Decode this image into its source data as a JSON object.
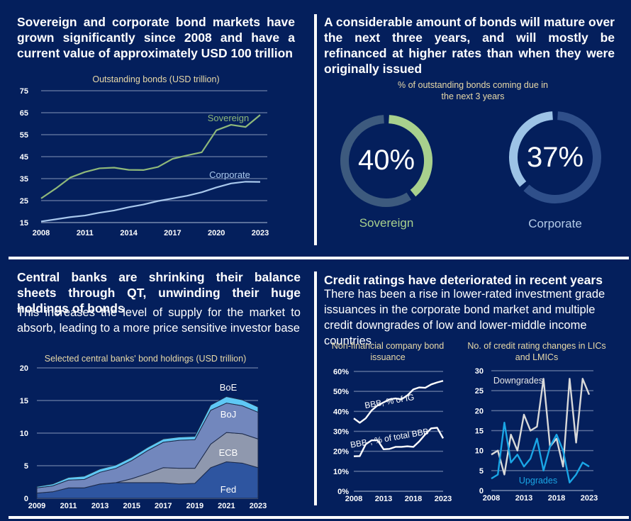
{
  "panels": {
    "top_left": {
      "headline": "Sovereign and corporate bond markets have grown significantly since 2008 and have a current value of approximately USD 100 trillion"
    },
    "top_right": {
      "headline": "A considerable amount of bonds will mature over the next three years, and will mostly be refinanced at higher rates than when they were originally issued",
      "chart_title_line1": "% of outstanding bonds coming due in",
      "chart_title_line2": "the next 3 years"
    },
    "bottom_left": {
      "headline": "Central banks are shrinking their balance sheets through QT, unwinding their huge holdings of bonds",
      "subtext": "This increases the level of supply for the market to absorb, leading to a more price sensitive investor base"
    },
    "bottom_right": {
      "headline": "Credit ratings have deteriorated in recent years",
      "subtext": "There has been a rise in lower-rated investment grade issuances in the corporate bond market and multiple credit downgrades of low and lower-middle income countries"
    }
  },
  "colors": {
    "background": "#041f5c",
    "sovereign": "#8fb87a",
    "corporate": "#a9c8ec",
    "sovereign_donut": "#a8d08d",
    "corporate_donut": "#9dc3e6",
    "donut_track_sov": "#3d5a7e",
    "donut_track_corp": "#2f4f8a",
    "fed": "#2e55a0",
    "ecb": "#8f98ae",
    "boj": "#7287bd",
    "boe": "#5fc8f5",
    "downgrades": "#d9d9d9",
    "upgrades": "#1aa6e6",
    "title_text": "#e8d9a8",
    "grid": "#5a6f9a"
  },
  "chart_data": [
    {
      "id": "outstanding_bonds",
      "type": "line",
      "title": "Outstanding bonds (USD trillion)",
      "xlabel": "",
      "ylabel": "",
      "x": [
        2008,
        2009,
        2010,
        2011,
        2012,
        2013,
        2014,
        2015,
        2016,
        2017,
        2018,
        2019,
        2020,
        2021,
        2022,
        2023
      ],
      "x_ticks": [
        "2008",
        "2011",
        "2014",
        "2017",
        "2020",
        "2023"
      ],
      "y_ticks": [
        15,
        25,
        35,
        45,
        55,
        65,
        75
      ],
      "ylim": [
        15,
        75
      ],
      "grid": true,
      "series": [
        {
          "name": "Sovereign",
          "values": [
            26,
            30.5,
            35.5,
            38,
            39.7,
            40,
            39,
            38.9,
            40.3,
            44,
            45.6,
            47,
            57,
            59.5,
            58.5,
            64
          ]
        },
        {
          "name": "Corporate",
          "values": [
            15.5,
            16.5,
            17.5,
            18.2,
            19.5,
            20.5,
            22,
            23.2,
            24.8,
            26,
            27.2,
            28.8,
            31,
            32.8,
            33.6,
            33.5
          ]
        }
      ]
    },
    {
      "id": "bonds_due",
      "type": "pie",
      "title": "% of outstanding bonds coming due in the next 3 years",
      "series": [
        {
          "name": "Sovereign",
          "value": 40,
          "label": "40%"
        },
        {
          "name": "Corporate",
          "value": 37,
          "label": "37%"
        }
      ]
    },
    {
      "id": "cb_holdings",
      "type": "area",
      "stacked": true,
      "title": "Selected central banks' bond holdings (USD trillion)",
      "x": [
        2009,
        2010,
        2011,
        2012,
        2013,
        2014,
        2015,
        2016,
        2017,
        2018,
        2019,
        2020,
        2021,
        2022,
        2023
      ],
      "x_ticks": [
        "2009",
        "2011",
        "2013",
        "2015",
        "2017",
        "2019",
        "2021",
        "2023"
      ],
      "y_ticks": [
        0,
        5,
        10,
        15,
        20
      ],
      "ylim": [
        0,
        20
      ],
      "grid": true,
      "series": [
        {
          "name": "Fed",
          "values": [
            0.8,
            1.0,
            1.6,
            1.6,
            2.2,
            2.4,
            2.4,
            2.4,
            2.4,
            2.2,
            2.3,
            4.7,
            5.6,
            5.4,
            4.7
          ]
        },
        {
          "name": "ECB",
          "values": [
            0,
            0,
            0,
            0,
            0,
            0,
            0.6,
            1.4,
            2.3,
            2.4,
            2.3,
            3.6,
            4.5,
            4.5,
            4.4
          ]
        },
        {
          "name": "BoJ",
          "values": [
            0.8,
            0.9,
            1.2,
            1.3,
            1.8,
            2.2,
            2.8,
            3.5,
            3.9,
            4.3,
            4.4,
            5.2,
            4.5,
            4.3,
            4.1
          ]
        },
        {
          "name": "BoE",
          "values": [
            0.2,
            0.3,
            0.4,
            0.5,
            0.5,
            0.5,
            0.5,
            0.5,
            0.5,
            0.5,
            0.5,
            0.8,
            1.0,
            0.9,
            0.8
          ]
        }
      ]
    },
    {
      "id": "nfc_issuance",
      "type": "line",
      "title": "Non-financial company bond issuance",
      "x": [
        2008,
        2009,
        2010,
        2011,
        2012,
        2013,
        2014,
        2015,
        2016,
        2017,
        2018,
        2019,
        2020,
        2021,
        2022,
        2023
      ],
      "x_ticks": [
        "2008",
        "2013",
        "2018",
        "2023"
      ],
      "y_ticks": [
        "0%",
        "10%",
        "20%",
        "30%",
        "40%",
        "50%",
        "60%"
      ],
      "ylim": [
        0,
        60
      ],
      "grid": true,
      "series": [
        {
          "name": "BBB, % of IG",
          "values": [
            36.5,
            34.3,
            36.5,
            40.5,
            43,
            44.5,
            46,
            46.5,
            46,
            48,
            51,
            52,
            51.8,
            53.5,
            54.5,
            55.3
          ]
        },
        {
          "name": "BBB-, % of total BBB",
          "values": [
            17.5,
            17.6,
            23.5,
            25.5,
            25.5,
            21,
            21.2,
            22.2,
            22.2,
            22.5,
            22.2,
            25,
            28.5,
            31.5,
            31.8,
            26.5
          ]
        }
      ]
    },
    {
      "id": "rating_changes",
      "type": "line",
      "title": "No. of credit rating changes in LICs and LMICs",
      "x": [
        2008,
        2009,
        2010,
        2011,
        2012,
        2013,
        2014,
        2015,
        2016,
        2017,
        2018,
        2019,
        2020,
        2021,
        2022,
        2023
      ],
      "x_ticks": [
        "2008",
        "2013",
        "2018",
        "2023"
      ],
      "y_ticks": [
        0,
        5,
        10,
        15,
        20,
        25,
        30
      ],
      "ylim": [
        0,
        30
      ],
      "grid": true,
      "series": [
        {
          "name": "Downgrades",
          "values": [
            9,
            10,
            4,
            14,
            10,
            19,
            15,
            16,
            28,
            11,
            13,
            6,
            28,
            12,
            28,
            24
          ]
        },
        {
          "name": "Upgrades",
          "values": [
            3,
            4,
            17,
            7,
            9,
            6,
            8,
            13,
            5,
            11,
            14,
            10,
            2,
            4,
            7,
            6
          ]
        }
      ]
    }
  ]
}
